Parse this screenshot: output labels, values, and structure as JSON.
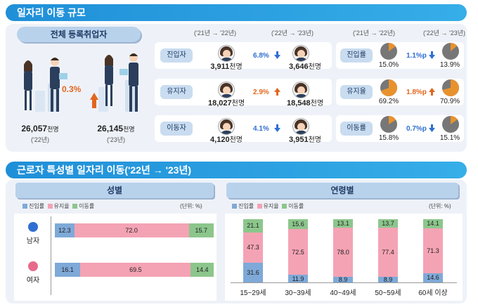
{
  "section1": {
    "title": "일자리 이동 규모",
    "total": {
      "label": "전체 등록취업자",
      "growth": "0.3%",
      "y22": {
        "value": "26,057",
        "unit": "천명",
        "year": "('22년)"
      },
      "y23": {
        "value": "26,145",
        "unit": "천명",
        "year": "('23년)"
      }
    }
  },
  "period_a": "('21년 → '22년)",
  "period_b": "('22년 → '23년)",
  "rows": [
    {
      "label": "진입자",
      "a": {
        "value": "3,911",
        "unit": "천명"
      },
      "change": "6.8%",
      "dir": "down",
      "b": {
        "value": "3,646",
        "unit": "천명"
      }
    },
    {
      "label": "유지자",
      "a": {
        "value": "18,027",
        "unit": "천명"
      },
      "change": "2.9%",
      "dir": "up",
      "b": {
        "value": "18,548",
        "unit": "천명"
      }
    },
    {
      "label": "이동자",
      "a": {
        "value": "4,120",
        "unit": "천명"
      },
      "change": "4.1%",
      "dir": "down",
      "b": {
        "value": "3,951",
        "unit": "천명"
      }
    }
  ],
  "rates": [
    {
      "label": "진입률",
      "a": "15.0%",
      "change": "1.1%p",
      "dir": "down",
      "b": "13.9%"
    },
    {
      "label": "유지율",
      "a": "69.2%",
      "change": "1.8%p",
      "dir": "up",
      "b": "70.9%"
    },
    {
      "label": "이동률",
      "a": "15.8%",
      "change": "0.7%p",
      "dir": "down",
      "b": "15.1%"
    }
  ],
  "section2": {
    "title": "근로자 특성별 일자리 이동('22년 → '23년)",
    "gender_title": "성별",
    "age_title": "연령별",
    "unit": "(단위: %)",
    "legend": [
      "진입률",
      "유지율",
      "이동률"
    ]
  },
  "colors": {
    "entry": "#7ea9d8",
    "stay": "#f4a3b4",
    "move": "#8cc68c",
    "accent": "#e8922e",
    "blue": "#2f6fd1",
    "orange": "#e2661e"
  },
  "chart_data": [
    {
      "type": "bar",
      "orientation": "horizontal",
      "stacked": true,
      "title": "성별",
      "categories": [
        "남자",
        "여자"
      ],
      "series": [
        {
          "name": "진입률",
          "values": [
            12.3,
            16.1
          ]
        },
        {
          "name": "유지율",
          "values": [
            72.0,
            69.5
          ]
        },
        {
          "name": "이동률",
          "values": [
            15.7,
            14.4
          ]
        }
      ]
    },
    {
      "type": "bar",
      "stacked": true,
      "title": "연령별",
      "categories": [
        "15~29세",
        "30~39세",
        "40~49세",
        "50~59세",
        "60세 이상"
      ],
      "series": [
        {
          "name": "진입률",
          "values": [
            31.6,
            11.9,
            8.9,
            8.9,
            14.6
          ]
        },
        {
          "name": "유지율",
          "values": [
            47.3,
            72.5,
            78.0,
            77.4,
            71.3
          ]
        },
        {
          "name": "이동률",
          "values": [
            21.1,
            15.6,
            13.1,
            13.7,
            14.1
          ]
        }
      ]
    },
    {
      "type": "pie",
      "title": "진입률",
      "values": [
        15.0,
        13.9
      ]
    },
    {
      "type": "pie",
      "title": "유지율",
      "values": [
        69.2,
        70.9
      ]
    },
    {
      "type": "pie",
      "title": "이동률",
      "values": [
        15.8,
        15.1
      ]
    }
  ]
}
